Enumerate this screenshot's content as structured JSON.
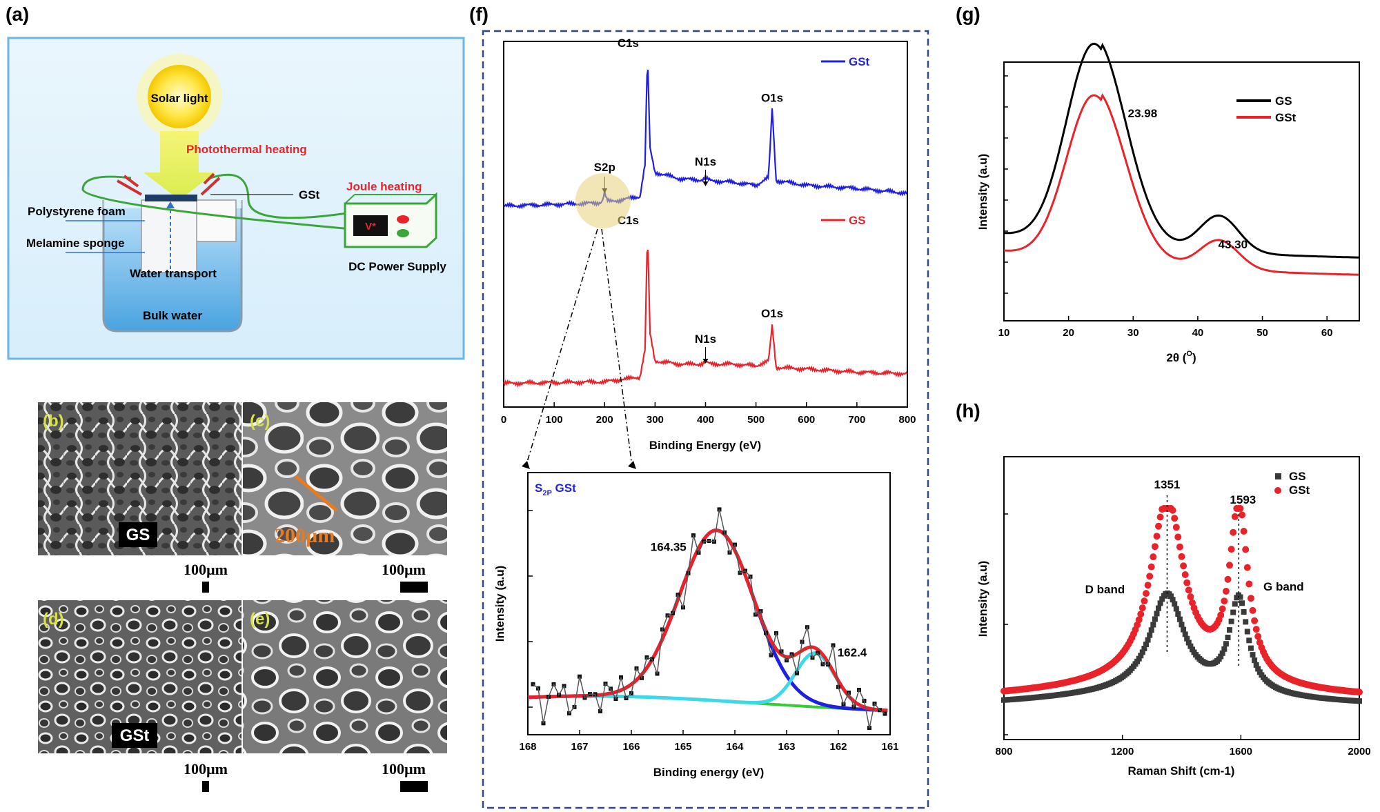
{
  "panel_labels": {
    "a": "(a)",
    "f": "(f)",
    "g": "(g)",
    "h": "(h)"
  },
  "schematic": {
    "solar": "Solar light",
    "photothermal": "Photothermal heating",
    "joule": "Joule heating",
    "gst": "GSt",
    "polystyrene": "Polystyrene foam",
    "melamine": "Melamine sponge",
    "water_transport": "Water transport",
    "bulk_water": "Bulk water",
    "dc_power": "DC Power Supply",
    "display": "V*"
  },
  "sem": {
    "tags": [
      "(b)",
      "(c)",
      "(d)",
      "(e)"
    ],
    "gs_label": "GS",
    "gst_label": "GSt",
    "pore_size": "200µm",
    "scale": "100µm"
  },
  "colors": {
    "gs": "#e8232a",
    "gst": "#1f1fe0",
    "gs_black": "#000000",
    "gs_gray": "#3a3a3a",
    "frame": "#2a4a8a"
  },
  "chart_data": [
    {
      "id": "xps_survey",
      "type": "line",
      "xlabel": "Binding Energy (eV)",
      "xlim": [
        0,
        800
      ],
      "xticks": [
        0,
        100,
        200,
        300,
        400,
        500,
        600,
        700,
        800
      ],
      "series": [
        {
          "name": "GSt",
          "color": "#1f1fe0",
          "points": [
            [
              0,
              0.04
            ],
            [
              100,
              0.05
            ],
            [
              200,
              0.06
            ],
            [
              270,
              0.1
            ],
            [
              280,
              0.3
            ],
            [
              285,
              1.0
            ],
            [
              290,
              0.4
            ],
            [
              300,
              0.25
            ],
            [
              350,
              0.21
            ],
            [
              400,
              0.2
            ],
            [
              450,
              0.19
            ],
            [
              500,
              0.17
            ],
            [
              525,
              0.22
            ],
            [
              532,
              0.65
            ],
            [
              540,
              0.2
            ],
            [
              600,
              0.17
            ],
            [
              700,
              0.15
            ],
            [
              800,
              0.12
            ]
          ],
          "peaks": [
            {
              "label": "S2p",
              "x": 200
            },
            {
              "label": "C1s",
              "x": 285
            },
            {
              "label": "N1s",
              "x": 400
            },
            {
              "label": "O1s",
              "x": 532
            }
          ]
        },
        {
          "name": "GS",
          "color": "#e8232a",
          "points": [
            [
              0,
              0.04
            ],
            [
              100,
              0.045
            ],
            [
              200,
              0.05
            ],
            [
              270,
              0.08
            ],
            [
              280,
              0.25
            ],
            [
              285,
              1.0
            ],
            [
              290,
              0.35
            ],
            [
              300,
              0.18
            ],
            [
              350,
              0.16
            ],
            [
              400,
              0.16
            ],
            [
              450,
              0.16
            ],
            [
              500,
              0.15
            ],
            [
              525,
              0.18
            ],
            [
              532,
              0.4
            ],
            [
              540,
              0.14
            ],
            [
              600,
              0.13
            ],
            [
              700,
              0.11
            ],
            [
              800,
              0.1
            ]
          ],
          "peaks": [
            {
              "label": "C1s",
              "x": 285
            },
            {
              "label": "N1s",
              "x": 400
            },
            {
              "label": "O1s",
              "x": 532
            }
          ]
        }
      ]
    },
    {
      "id": "s2p_hr",
      "type": "line",
      "title": "S",
      "title_sub": "2P",
      "title_rest": " GSt",
      "xlabel": "Binding energy (eV)",
      "ylabel": "Intensity (a.u)",
      "xlim": [
        168,
        161
      ],
      "xticks": [
        168,
        167,
        166,
        165,
        164,
        163,
        162,
        161
      ],
      "annotations": [
        {
          "text": "164.35",
          "x": 164.35
        },
        {
          "text": "162.4",
          "x": 162.4
        }
      ],
      "components": [
        {
          "name": "raw",
          "color": "#333333",
          "center": 164.35,
          "amp": 1.0
        },
        {
          "name": "envelope",
          "color": "#e8232a",
          "center": 164.35,
          "amp": 1.0
        },
        {
          "name": "peak1",
          "color": "#1f1fe0",
          "center": 164.35,
          "amp": 0.95
        },
        {
          "name": "peak2",
          "color": "#3fd8e8",
          "center": 162.4,
          "amp": 0.3
        },
        {
          "name": "background",
          "color": "#33cc33",
          "center": 0,
          "amp": 0
        }
      ]
    },
    {
      "id": "xrd",
      "type": "line",
      "xlabel": "2θ (",
      "xlabel_sup": "O",
      "xlabel_end": ")",
      "ylabel": "Intensity (a.u)",
      "xlim": [
        10,
        65
      ],
      "xticks": [
        10,
        20,
        30,
        40,
        50,
        60
      ],
      "legend": [
        "GS",
        "GSt"
      ],
      "annotations": [
        {
          "text": "23.98",
          "x": 23.98
        },
        {
          "text": "43.30",
          "x": 43.3
        }
      ],
      "series": [
        {
          "name": "GS",
          "color": "#000000",
          "peak1": 1.0,
          "peak2": 0.3
        },
        {
          "name": "GSt",
          "color": "#e8232a",
          "peak1": 0.83,
          "peak2": 0.24
        }
      ]
    },
    {
      "id": "raman",
      "type": "scatter",
      "xlabel": "Raman Shift (cm-1)",
      "ylabel": "Intensity (a.u)",
      "xlim": [
        800,
        2000
      ],
      "xticks": [
        800,
        1200,
        1600,
        2000
      ],
      "legend": [
        "GS",
        "GSt"
      ],
      "annotations": [
        {
          "text": "1351",
          "x": 1351
        },
        {
          "text": "1593",
          "x": 1593
        },
        {
          "text": "D band",
          "x": 1351
        },
        {
          "text": "G band",
          "x": 1593
        }
      ],
      "series": [
        {
          "name": "GS",
          "color": "#3a3a3a",
          "marker": "square",
          "d": 0.55,
          "g": 0.55
        },
        {
          "name": "GSt",
          "color": "#e8232a",
          "marker": "circle",
          "d": 0.95,
          "g": 0.95
        }
      ]
    }
  ]
}
